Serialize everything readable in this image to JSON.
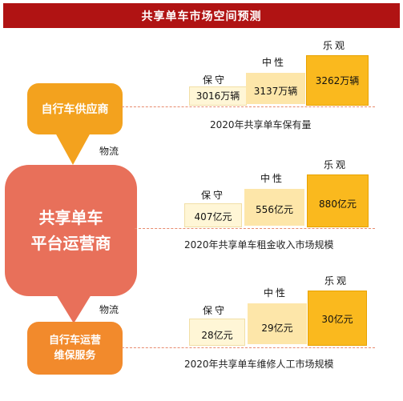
{
  "title": "共享单车市场空间预测",
  "nodes": {
    "supplier": "自行车供应商",
    "platform_line1": "共享单车",
    "platform_line2": "平台运营商",
    "maint_line1": "自行车运营",
    "maint_line2": "维保服务",
    "logistics_label": "物流"
  },
  "categories": [
    "保守",
    "中性",
    "乐观"
  ],
  "panels": [
    {
      "caption": "2020年共享单车保有量",
      "values": [
        "3016万辆",
        "3137万辆",
        "3262万辆"
      ]
    },
    {
      "caption": "2020年共享单车租金收入市场规模",
      "values": [
        "407亿元",
        "556亿元",
        "880亿元"
      ]
    },
    {
      "caption": "2020年共享单车维修人工市场规模",
      "values": [
        "28亿元",
        "29亿元",
        "30亿元"
      ]
    }
  ],
  "colors": {
    "title_bg": "#b01313",
    "supplier": "#f3a21e",
    "platform": "#e8705a",
    "maintenance": "#f28a2c",
    "conservative": "#fff6d6",
    "neutral": "#fde6a9",
    "optimistic": "#fab91e"
  }
}
